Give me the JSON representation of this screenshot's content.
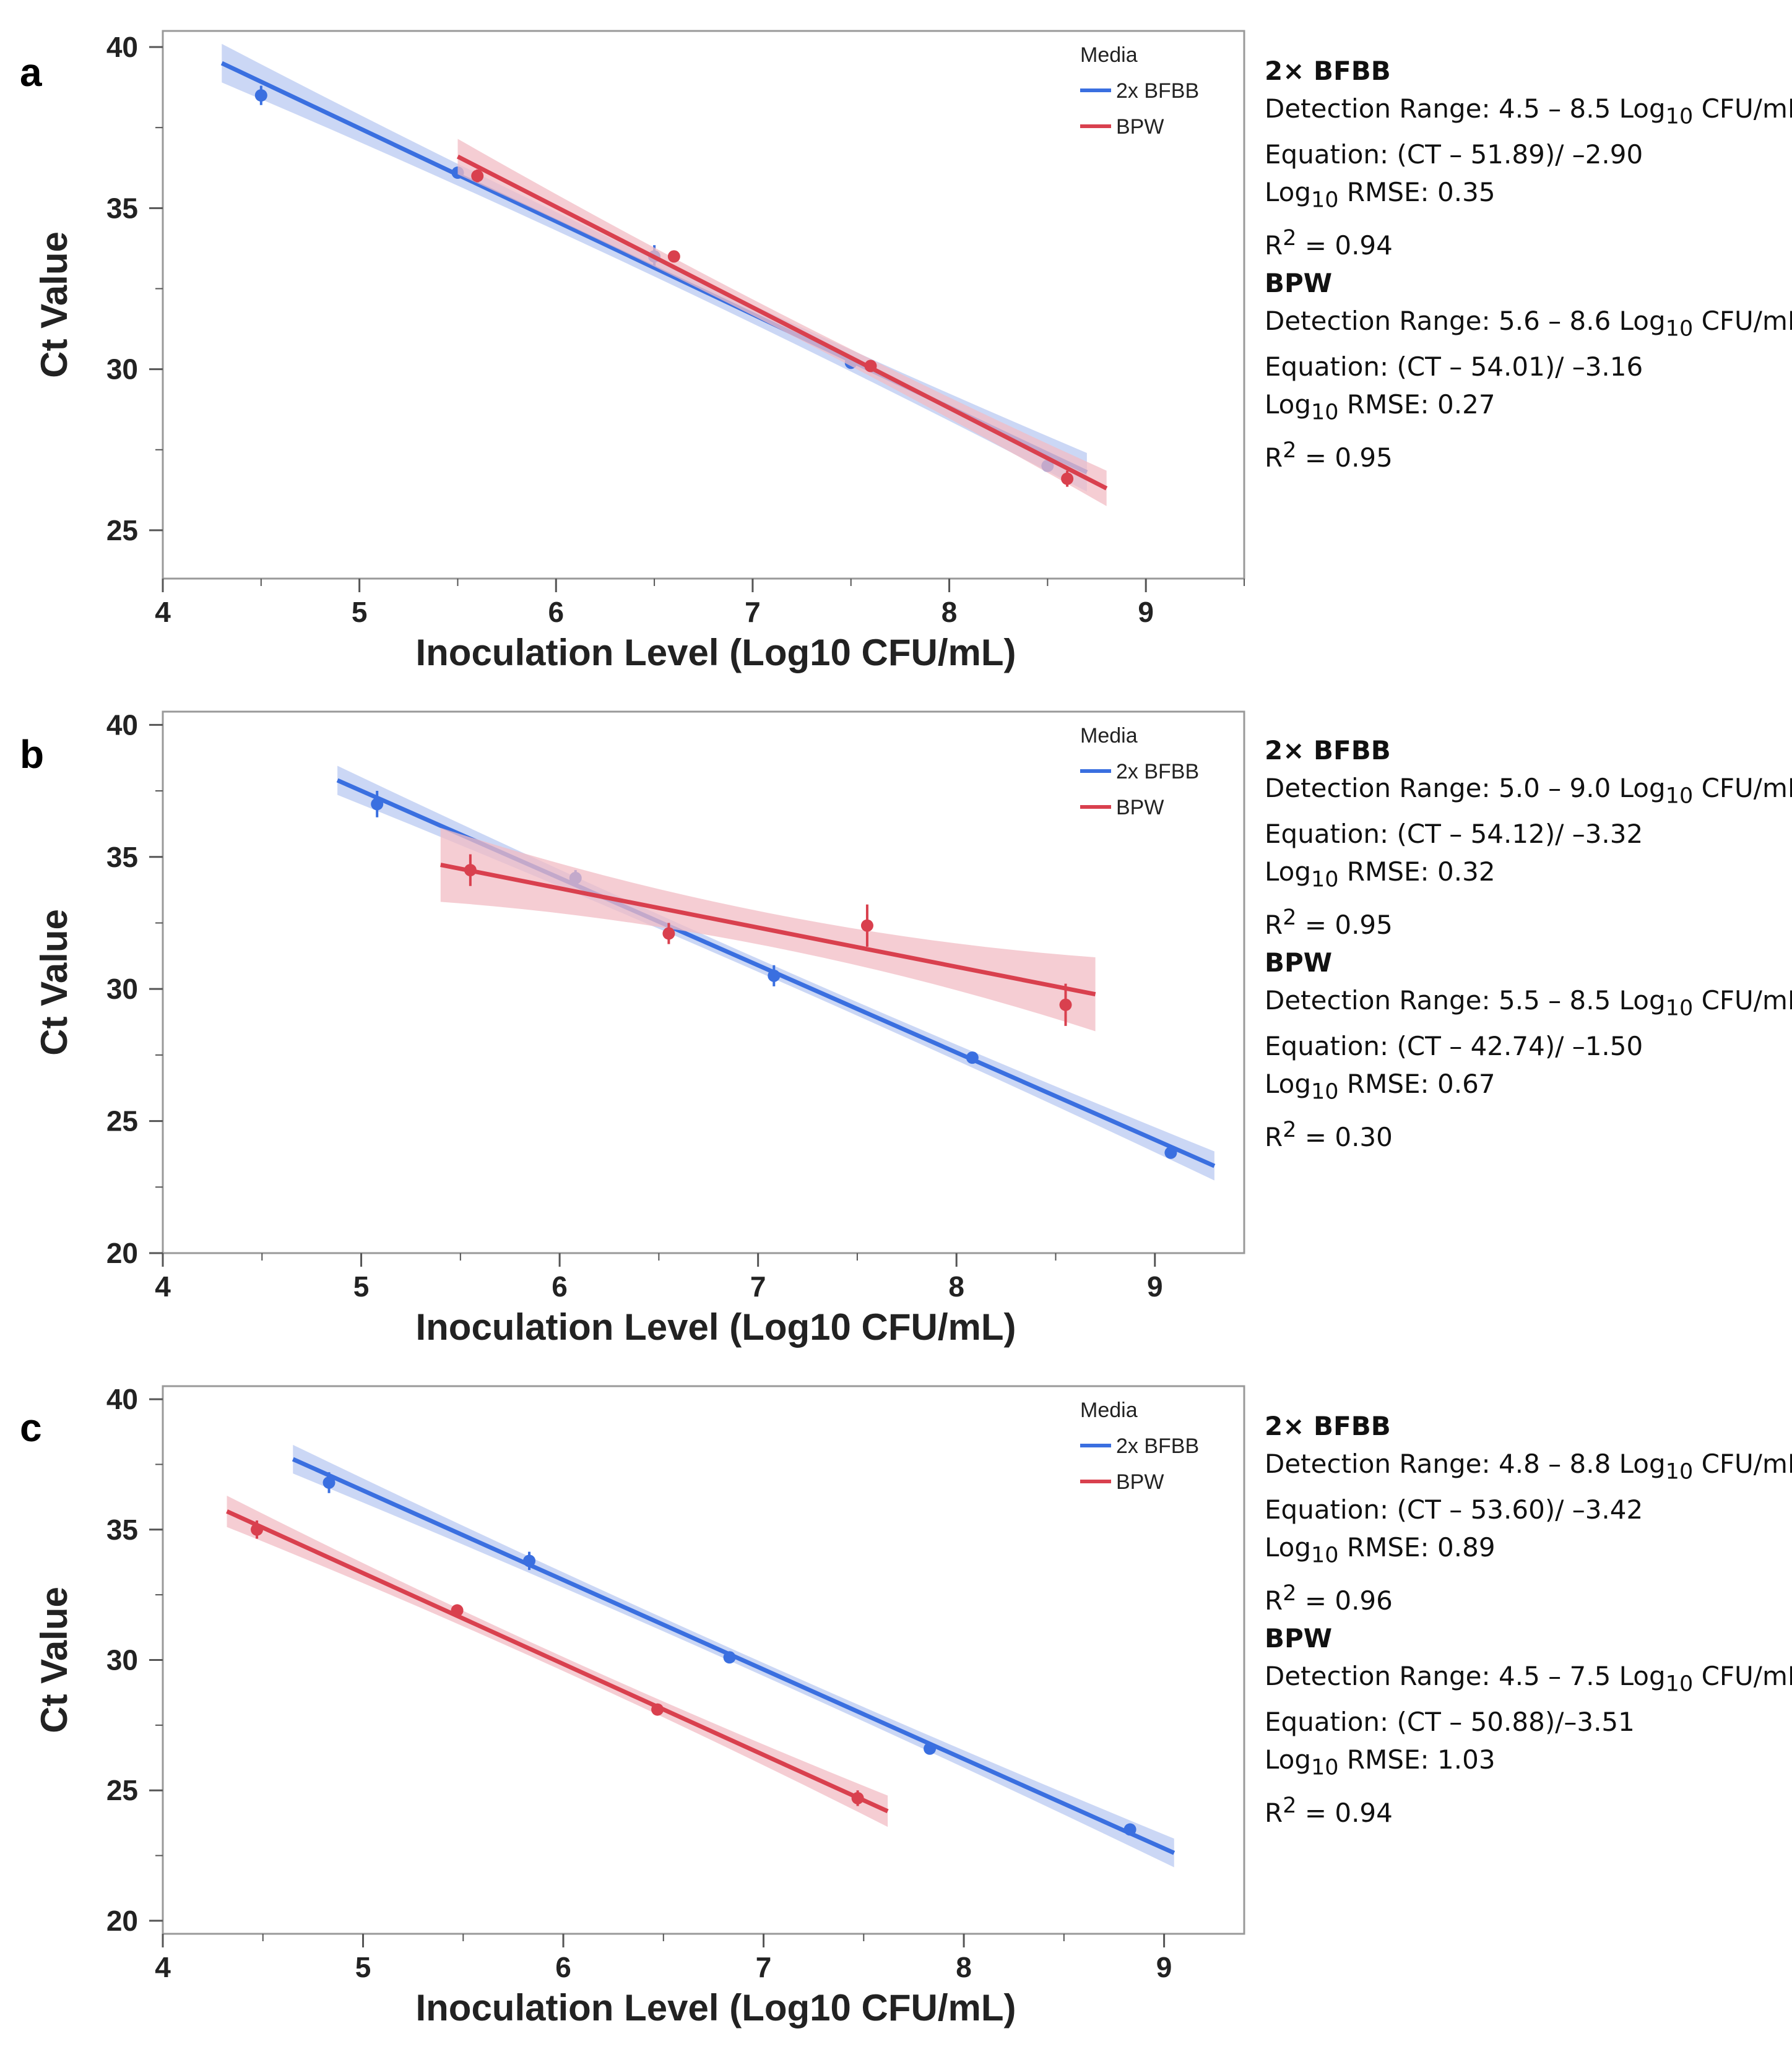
{
  "colors": {
    "blue": "#3a6fe0",
    "red": "#d9404e",
    "blue_band": "#b9c9f2",
    "red_band": "#f2bcc4",
    "frame": "#999999"
  },
  "axis_titles": {
    "x": "Inoculation Level (Log10 CFU/mL)",
    "y": "Ct Value"
  },
  "legend": {
    "title": "Media",
    "series": [
      "2x BFBB",
      "BPW"
    ]
  },
  "chart_data": [
    {
      "panel": "a",
      "type": "scatter",
      "xlabel": "Inoculation Level (Log10 CFU/mL)",
      "ylabel": "Ct Value",
      "xlim": [
        4,
        9.5
      ],
      "ylim": [
        23.5,
        40.5
      ],
      "xticks": [
        "4",
        "5",
        "6",
        "7",
        "8",
        "9"
      ],
      "yticks": [
        "25",
        "30",
        "35",
        "40"
      ],
      "legend_title": "Media",
      "series": [
        {
          "name": "2x BFBB",
          "color": "#3a6fe0",
          "points": [
            [
              4.5,
              38.5,
              0.3
            ],
            [
              5.5,
              36.1,
              0.15
            ],
            [
              6.5,
              33.5,
              0.35
            ],
            [
              7.5,
              30.2,
              0.15
            ],
            [
              8.5,
              27.0,
              0.15
            ]
          ],
          "fit": {
            "x0": 4.3,
            "y0": 39.5,
            "x1": 8.7,
            "y1": 26.8
          },
          "band": 0.6
        },
        {
          "name": "BPW",
          "color": "#d9404e",
          "points": [
            [
              5.6,
              36.0,
              0.2
            ],
            [
              6.6,
              33.5,
              0.1
            ],
            [
              7.6,
              30.1,
              0.1
            ],
            [
              8.6,
              26.6,
              0.25
            ]
          ],
          "fit": {
            "x0": 5.5,
            "y0": 36.6,
            "x1": 8.8,
            "y1": 26.3
          },
          "band": 0.55
        }
      ]
    },
    {
      "panel": "b",
      "type": "scatter",
      "xlabel": "Inoculation Level (Log10 CFU/mL)",
      "ylabel": "Ct Value",
      "xlim": [
        4,
        9.45
      ],
      "ylim": [
        20,
        40.5
      ],
      "xticks": [
        "4",
        "5",
        "6",
        "7",
        "8",
        "9"
      ],
      "yticks": [
        "20",
        "25",
        "30",
        "35",
        "40"
      ],
      "legend_title": "Media",
      "series": [
        {
          "name": "2x BFBB",
          "color": "#3a6fe0",
          "points": [
            [
              5.08,
              37.0,
              0.5
            ],
            [
              6.08,
              34.2,
              0.3
            ],
            [
              7.08,
              30.5,
              0.4
            ],
            [
              8.08,
              27.4,
              0.2
            ],
            [
              9.08,
              23.8,
              0.2
            ]
          ],
          "fit": {
            "x0": 4.88,
            "y0": 37.9,
            "x1": 9.3,
            "y1": 23.3
          },
          "band": 0.55
        },
        {
          "name": "BPW",
          "color": "#d9404e",
          "points": [
            [
              5.55,
              34.5,
              0.6
            ],
            [
              6.55,
              32.1,
              0.4
            ],
            [
              7.55,
              32.4,
              0.8
            ],
            [
              8.55,
              29.4,
              0.8
            ]
          ],
          "fit": {
            "x0": 5.4,
            "y0": 34.7,
            "x1": 8.7,
            "y1": 29.8
          },
          "band": 1.4
        }
      ]
    },
    {
      "panel": "c",
      "type": "scatter",
      "xlabel": "Inoculation Level (Log10 CFU/mL)",
      "ylabel": "Ct Value",
      "xlim": [
        4,
        9.4
      ],
      "ylim": [
        19.5,
        40.5
      ],
      "xticks": [
        "4",
        "5",
        "6",
        "7",
        "8",
        "9"
      ],
      "yticks": [
        "20",
        "25",
        "30",
        "35",
        "40"
      ],
      "legend_title": "Media",
      "series": [
        {
          "name": "2x BFBB",
          "color": "#3a6fe0",
          "points": [
            [
              4.83,
              36.8,
              0.4
            ],
            [
              5.83,
              33.8,
              0.35
            ],
            [
              6.83,
              30.1,
              0.2
            ],
            [
              7.83,
              26.6,
              0.2
            ],
            [
              8.83,
              23.5,
              0.2
            ]
          ],
          "fit": {
            "x0": 4.65,
            "y0": 37.7,
            "x1": 9.05,
            "y1": 22.6
          },
          "band": 0.55
        },
        {
          "name": "BPW",
          "color": "#d9404e",
          "points": [
            [
              4.47,
              35.0,
              0.35
            ],
            [
              5.47,
              31.9,
              0.2
            ],
            [
              6.47,
              28.1,
              0.2
            ],
            [
              7.47,
              24.7,
              0.3
            ]
          ],
          "fit": {
            "x0": 4.32,
            "y0": 35.7,
            "x1": 7.62,
            "y1": 24.2
          },
          "band": 0.6
        }
      ]
    }
  ],
  "panels": [
    {
      "label": "a",
      "bfbb": {
        "title": "2× BFBB",
        "range_prefix": "Detection Range: 4.5 – 8.5 Log",
        "sub": "10",
        "range_suffix": " CFU/mL",
        "equation": "Equation: (CT – 51.89)/ –2.90",
        "rmse_prefix": "Log",
        "rmse_suffix": " RMSE: 0.35",
        "r2_prefix": "R",
        "r2_suffix": " = 0.94"
      },
      "bpw": {
        "title": "BPW",
        "range_prefix": "Detection Range: 5.6 – 8.6 Log",
        "sub": "10",
        "range_suffix": " CFU/mL",
        "equation": "Equation: (CT – 54.01)/ –3.16",
        "rmse_prefix": "Log",
        "rmse_suffix": " RMSE: 0.27",
        "r2_prefix": "R",
        "r2_suffix": " = 0.95"
      }
    },
    {
      "label": "b",
      "bfbb": {
        "title": "2× BFBB",
        "range_prefix": "Detection Range: 5.0 – 9.0 Log",
        "sub": "10",
        "range_suffix": " CFU/mL",
        "equation": "Equation: (CT – 54.12)/ –3.32",
        "rmse_prefix": "Log",
        "rmse_suffix": " RMSE: 0.32",
        "r2_prefix": "R",
        "r2_suffix": " = 0.95"
      },
      "bpw": {
        "title": "BPW",
        "range_prefix": "Detection Range: 5.5 – 8.5 Log",
        "sub": "10",
        "range_suffix": " CFU/mL",
        "equation": "Equation: (CT – 42.74)/ –1.50",
        "rmse_prefix": "Log",
        "rmse_suffix": " RMSE: 0.67",
        "r2_prefix": "R",
        "r2_suffix": " = 0.30"
      }
    },
    {
      "label": "c",
      "bfbb": {
        "title": "2× BFBB",
        "range_prefix": "Detection Range: 4.8 – 8.8 Log",
        "sub": "10",
        "range_suffix": " CFU/mL",
        "equation": "Equation: (CT – 53.60)/ –3.42",
        "rmse_prefix": "Log",
        "rmse_suffix": " RMSE: 0.89",
        "r2_prefix": "R",
        "r2_suffix": " = 0.96"
      },
      "bpw": {
        "title": "BPW",
        "range_prefix": "Detection Range: 4.5 – 7.5 Log",
        "sub": "10",
        "range_suffix": " CFU/mL",
        "equation": "Equation: (CT – 50.88)/–3.51",
        "rmse_prefix": "Log",
        "rmse_suffix": " RMSE: 1.03",
        "r2_prefix": "R",
        "r2_suffix": " = 0.94"
      }
    }
  ]
}
